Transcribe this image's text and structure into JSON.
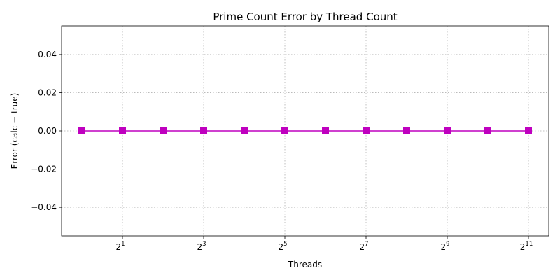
{
  "chart_data": {
    "type": "line",
    "title": "Prime Count Error by Thread Count",
    "xlabel": "Threads",
    "ylabel": "Error (calc − true)",
    "x_scale": "log2",
    "x_ticks": [
      {
        "base": "2",
        "exp": "1",
        "value": 2
      },
      {
        "base": "2",
        "exp": "3",
        "value": 8
      },
      {
        "base": "2",
        "exp": "5",
        "value": 32
      },
      {
        "base": "2",
        "exp": "7",
        "value": 128
      },
      {
        "base": "2",
        "exp": "9",
        "value": 512
      },
      {
        "base": "2",
        "exp": "11",
        "value": 2048
      }
    ],
    "y_ticks": [
      "−0.04",
      "−0.02",
      "0.00",
      "0.02",
      "0.04"
    ],
    "y_tick_values": [
      -0.04,
      -0.02,
      0.0,
      0.02,
      0.04
    ],
    "ylim": [
      -0.055,
      0.055
    ],
    "xlim": [
      0.707,
      2896.3
    ],
    "grid": true,
    "series": [
      {
        "color": "#bf00bf",
        "marker": "square",
        "x": [
          1,
          2,
          4,
          8,
          16,
          32,
          64,
          128,
          256,
          512,
          1024,
          2048
        ],
        "y": [
          0,
          0,
          0,
          0,
          0,
          0,
          0,
          0,
          0,
          0,
          0,
          0
        ]
      }
    ]
  }
}
